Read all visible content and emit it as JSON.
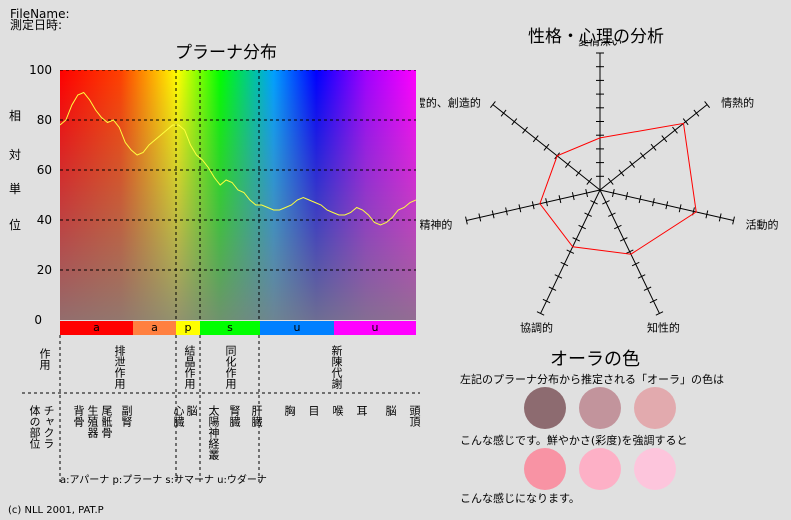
{
  "header": {
    "filename_label": "FileName:",
    "date_label": "測定日時:"
  },
  "prana": {
    "title": "プラーナ分布",
    "ylabel_chars": [
      "相",
      "対",
      "単",
      "位"
    ],
    "yticks": [
      "100",
      "80",
      "60",
      "40",
      "20",
      "0"
    ],
    "bands": [
      {
        "label": "a",
        "color": "#ff0000"
      },
      {
        "label": "a",
        "color": "#ff8040"
      },
      {
        "label": "p",
        "color": "#ffff00"
      },
      {
        "label": "s",
        "color": "#00ff00"
      },
      {
        "label": "u",
        "color": "#0080ff"
      },
      {
        "label": "u",
        "color": "#ff00ff"
      }
    ],
    "function_row_label": "作用",
    "functions": [
      "排泄作用",
      "結晶作用",
      "同化作用",
      "新陳代謝"
    ],
    "body_row_label": "体の部位",
    "chakra_label": "チャクラ",
    "body_parts": [
      "生殖器",
      "副腎",
      "脳",
      "肝臓",
      "胸",
      "目",
      "喉",
      "耳",
      "脳",
      "頭頂"
    ],
    "body_parts2": [
      "背骨",
      "尾骶骨",
      "心臓",
      "太陽神経叢",
      "腎臓"
    ],
    "legend": "a:アパーナ p:プラーナ s:サマーナ u:ウダーナ"
  },
  "chart_data": [
    {
      "type": "line",
      "title": "プラーナ分布",
      "ylabel": "相対単位",
      "ylim": [
        0,
        100
      ],
      "x": [
        0,
        1,
        2,
        3,
        4,
        5,
        6,
        7,
        8,
        9,
        10,
        11,
        12,
        13,
        14,
        15,
        16,
        17,
        18,
        19,
        20,
        21,
        22,
        23,
        24,
        25,
        26,
        27,
        28,
        29,
        30,
        31,
        32,
        33,
        34,
        35,
        36,
        37,
        38,
        39,
        40,
        41,
        42,
        43,
        44,
        45,
        46,
        47,
        48,
        49,
        50,
        51,
        52,
        53,
        54,
        55,
        56,
        57,
        58,
        59,
        60
      ],
      "series": [
        {
          "values": [
            78,
            80,
            86,
            90,
            91,
            88,
            84,
            81,
            79,
            80,
            77,
            71,
            68,
            66,
            67,
            70,
            72,
            74,
            76,
            78,
            78,
            76,
            70,
            66,
            64,
            61,
            57,
            54,
            56,
            55,
            52,
            51,
            48,
            46,
            46,
            45,
            44,
            44,
            45,
            46,
            48,
            49,
            48,
            47,
            46,
            44,
            43,
            42,
            42,
            43,
            45,
            44,
            42,
            39,
            38,
            39,
            41,
            44,
            45,
            47,
            48
          ]
        }
      ]
    },
    {
      "type": "radar",
      "title": "性格・心理の分析",
      "categories": [
        "愛情深い",
        "情熱的",
        "活動的",
        "知性的",
        "協調的",
        "精神的",
        "霊的、創造的"
      ],
      "values": [
        0.38,
        0.78,
        0.72,
        0.52,
        0.46,
        0.45,
        0.4
      ]
    }
  ],
  "radar": {
    "title": "性格・心理の分析",
    "labels": [
      "愛情深い",
      "情熱的",
      "活動的",
      "知性的",
      "協調的",
      "精神的",
      "霊的、創造的"
    ]
  },
  "aura": {
    "title": "オーラの色",
    "line1": "左記のプラーナ分布から推定される「オーラ」の色は",
    "line2": "こんな感じです。鮮やかさ(彩度)を強調すると",
    "line3": "こんな感じになります。",
    "colors": [
      "#8d6b70",
      "#c2949c",
      "#e2aaae"
    ],
    "vivid_colors": [
      "#f893a4",
      "#fdb0c6",
      "#fdc5dc"
    ]
  },
  "footer": {
    "copyright": "(c) NLL 2001, PAT.P"
  }
}
